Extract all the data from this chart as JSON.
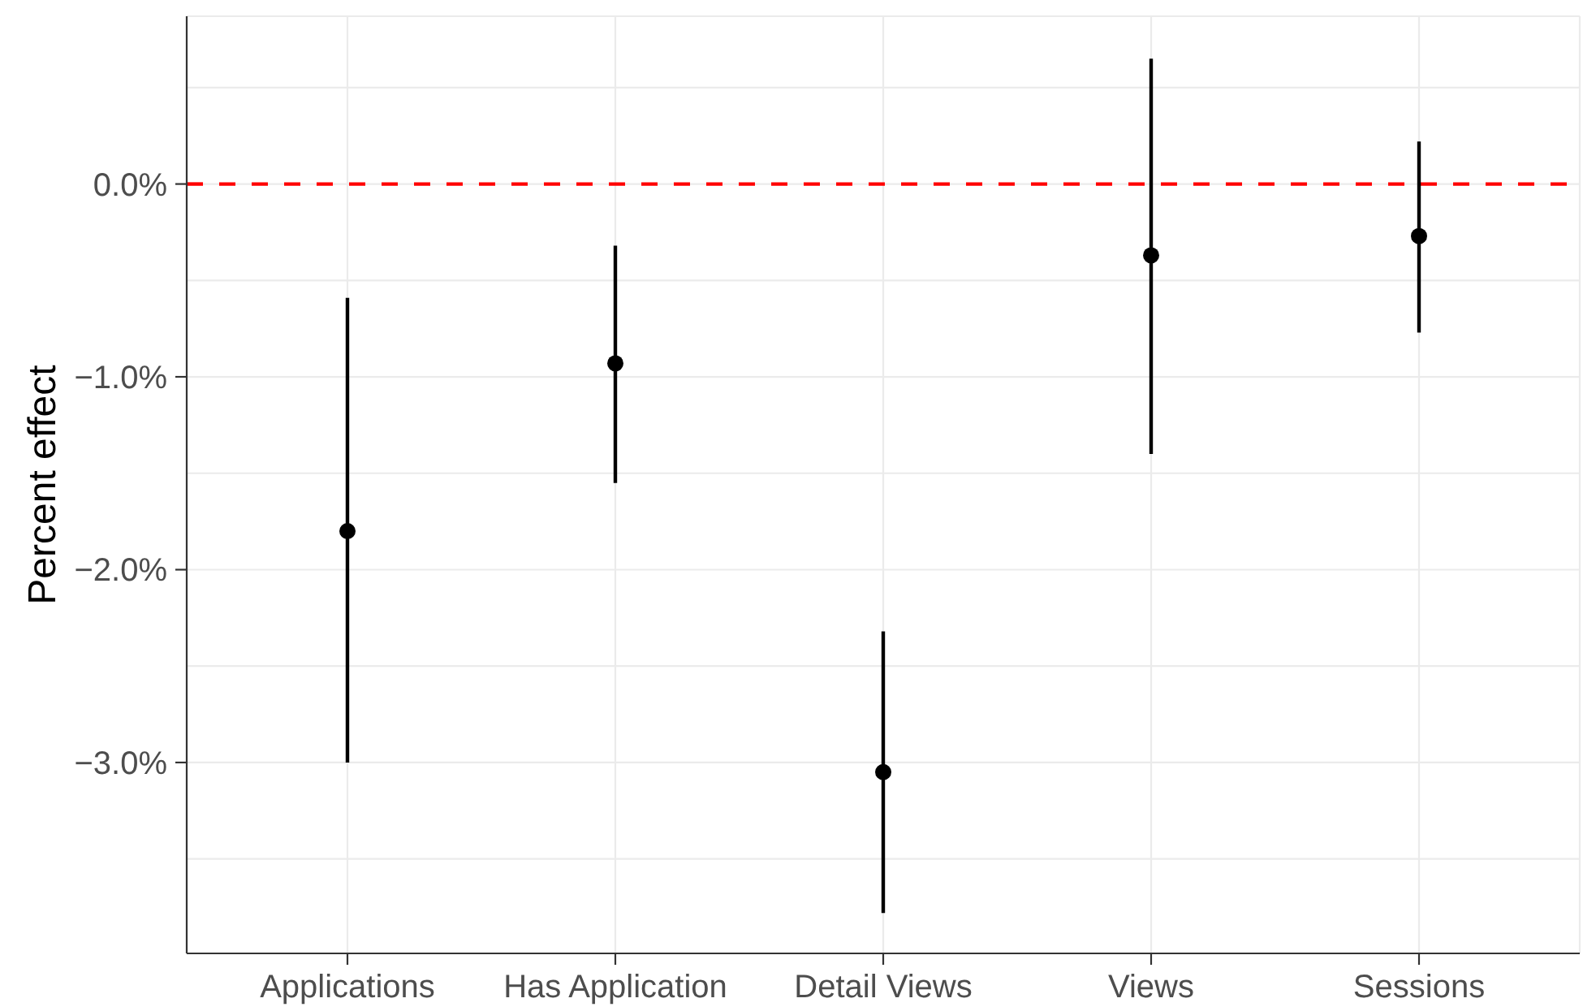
{
  "chart_data": {
    "type": "scatter",
    "ylabel": "Percent effect",
    "categories": [
      "Applications",
      "Has Application",
      "Detail Views",
      "Views",
      "Sessions"
    ],
    "values": [
      -1.8,
      -0.93,
      -3.05,
      -0.37,
      -0.27
    ],
    "errors": [
      [
        -3.0,
        -0.59
      ],
      [
        -1.55,
        -0.32
      ],
      [
        -3.78,
        -2.32
      ],
      [
        -1.4,
        0.65
      ],
      [
        -0.77,
        0.22
      ]
    ],
    "color": "#000000",
    "marker": "circle",
    "ylim": [
      -3.99,
      0.87
    ],
    "yticks": [
      {
        "value": -3.5,
        "label": null
      },
      {
        "value": -3,
        "label": "−3.0%"
      },
      {
        "value": -2.5,
        "label": null
      },
      {
        "value": -2,
        "label": "−2.0%"
      },
      {
        "value": -1.5,
        "label": null
      },
      {
        "value": -1,
        "label": "−1.0%"
      },
      {
        "value": -0.5,
        "label": null
      },
      {
        "value": 0,
        "label": "0.0%"
      },
      {
        "value": 0.5,
        "label": null
      }
    ],
    "grid": true,
    "ref_lines": [
      {
        "axis": "y",
        "value": 0,
        "color": "#ff0000",
        "line_style": "dashed"
      }
    ]
  }
}
